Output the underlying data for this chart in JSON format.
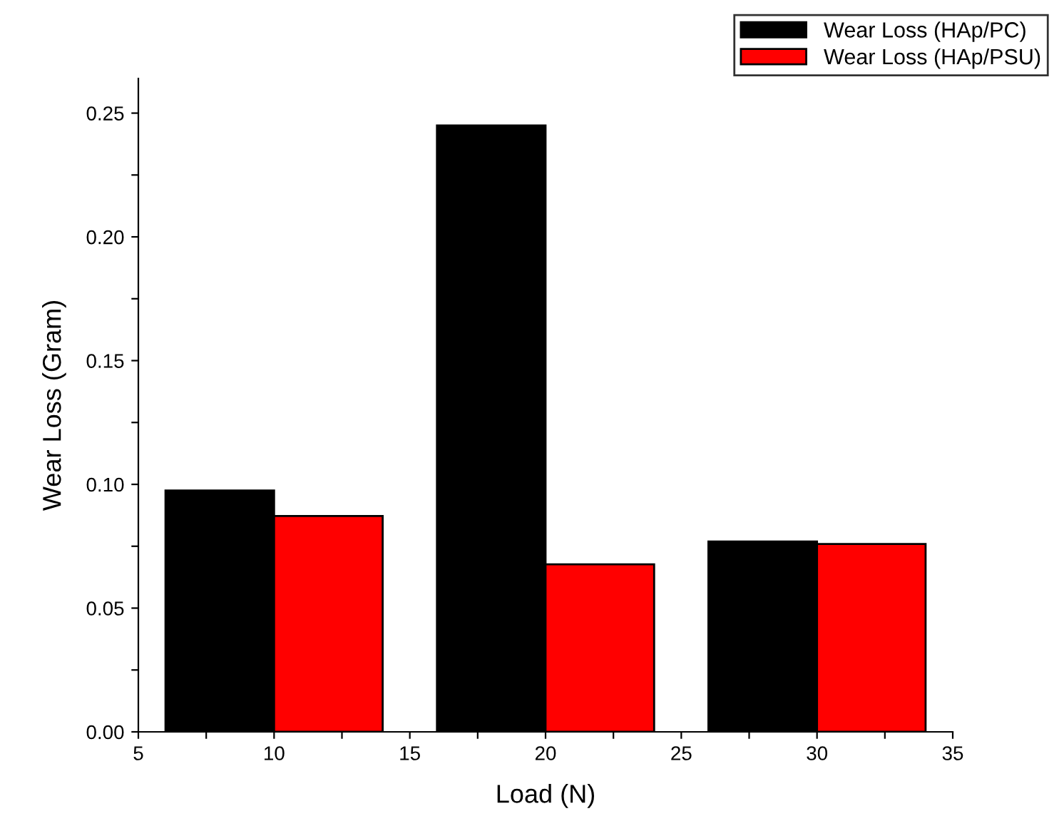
{
  "chart_data": {
    "type": "bar",
    "xlabel": "Load (N)",
    "ylabel": "Wear Loss (Gram)",
    "x": [
      10,
      20,
      30
    ],
    "series": [
      {
        "name": "Wear Loss (HAp/PC)",
        "color": "#000000",
        "values": [
          0.0975,
          0.245,
          0.0769
        ]
      },
      {
        "name": "Wear Loss (HAp/PSU)",
        "color": "#ff0000",
        "values": [
          0.0872,
          0.0677,
          0.0759
        ]
      }
    ],
    "xlim": [
      5,
      35
    ],
    "xticks": [
      5,
      {
        "value": 7.5,
        "label": null
      },
      10,
      {
        "value": 12.5,
        "label": null
      },
      15,
      {
        "value": 17.5,
        "label": null
      },
      20,
      {
        "value": 22.5,
        "label": null
      },
      25,
      {
        "value": 27.5,
        "label": null
      },
      30,
      {
        "value": 32.5,
        "label": null
      },
      35
    ],
    "ylim": [
      0,
      0.264
    ],
    "yticks": [
      {
        "value": 0,
        "label": "0.00"
      },
      {
        "value": 0.025,
        "label": null
      },
      {
        "value": 0.05,
        "label": "0.05"
      },
      {
        "value": 0.075,
        "label": null
      },
      {
        "value": 0.1,
        "label": "0.10"
      },
      {
        "value": 0.125,
        "label": null
      },
      {
        "value": 0.15,
        "label": "0.15"
      },
      {
        "value": 0.175,
        "label": null
      },
      {
        "value": 0.2,
        "label": "0.20"
      },
      {
        "value": 0.225,
        "label": null
      },
      {
        "value": 0.25,
        "label": "0.25"
      }
    ],
    "grid": false,
    "legend": "top right"
  }
}
